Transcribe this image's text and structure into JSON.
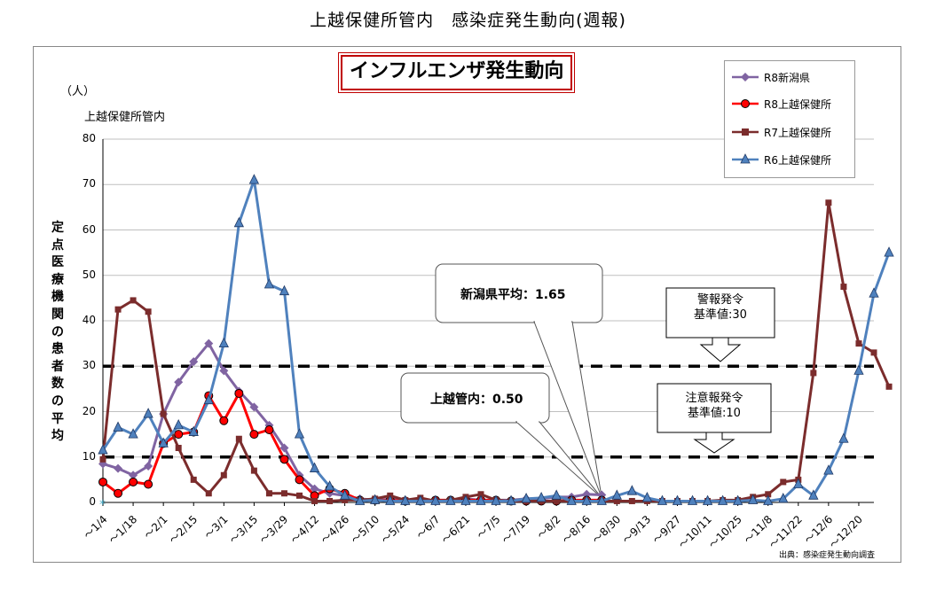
{
  "page_title": "上越保健所管内　感染症発生動向(週報)",
  "chart_data": {
    "type": "line",
    "title": "インフルエンザ発生動向",
    "unit": "（人）",
    "scope_label": "上越保健所管内",
    "ylabel": "定点医療機関の患者数の平均",
    "ylim": [
      0,
      80
    ],
    "yticks": [
      0,
      10,
      20,
      30,
      40,
      50,
      60,
      70,
      80
    ],
    "x_tick_labels": [
      "～1/4",
      "～1/18",
      "～2/1",
      "～2/15",
      "～3/1",
      "～3/15",
      "～3/29",
      "～4/12",
      "～4/26",
      "～5/10",
      "～5/24",
      "～6/7",
      "～6/21",
      "～7/5",
      "～7/19",
      "～8/2",
      "～8/16",
      "～8/30",
      "～9/13",
      "～9/27",
      "～10/11",
      "～10/25",
      "～11/8",
      "～11/22",
      "～12/6",
      "～12/20"
    ],
    "n_weeks": 52,
    "grid": "horizontal",
    "legend_position": "top-right",
    "series": [
      {
        "name": "R8新潟県",
        "color": "#8064a2",
        "marker": "diamond",
        "values": [
          8.5,
          7.5,
          6,
          8,
          19.5,
          26.5,
          31,
          35,
          29,
          24.5,
          21,
          17,
          12,
          6,
          3,
          2,
          1.5,
          0.8,
          0.5,
          0.7,
          0.5,
          0.5,
          0.3,
          0.5,
          0.8,
          0.5,
          0.5,
          0.5,
          0.8,
          0.8,
          1.2,
          1.2,
          1.8,
          1.65
        ]
      },
      {
        "name": "R8上越保健所",
        "color": "#ff0000",
        "marker": "circle",
        "values": [
          4.5,
          2,
          4.5,
          4,
          13,
          15,
          15.5,
          23.5,
          18,
          24,
          15,
          16,
          9.5,
          5,
          1.5,
          3,
          2,
          0.5,
          0.5,
          0.5,
          0.3,
          0.3,
          0.5,
          0.5,
          0.5,
          0.5,
          0.5,
          0.3,
          0.3,
          0.3,
          0.3,
          0.5,
          0.5,
          0.5
        ]
      },
      {
        "name": "R7上越保健所",
        "color": "#7b2c2c",
        "marker": "square",
        "values": [
          9.5,
          42.5,
          44.5,
          42,
          19.5,
          12,
          5,
          2,
          6,
          14,
          7,
          2,
          2,
          1.5,
          0.3,
          0.3,
          0.5,
          0.5,
          0.8,
          1.5,
          0.5,
          1,
          0.3,
          0.5,
          1.2,
          1.8,
          0.5,
          0.3,
          0.3,
          0.3,
          0.3,
          0.3,
          0.3,
          0.3,
          0.3,
          0.3,
          0.3,
          0.3,
          0.3,
          0.3,
          0.3,
          0.5,
          0.5,
          1.2,
          1.8,
          4.5,
          5,
          28.5,
          66,
          47.5,
          35,
          33,
          25.5
        ]
      },
      {
        "name": "R6上越保健所",
        "color": "#4f81bd",
        "marker": "triangle",
        "values": [
          11.5,
          16.5,
          15,
          19.5,
          13,
          17,
          15.5,
          22.5,
          35,
          61.5,
          71,
          48,
          46.5,
          15,
          7.5,
          3.5,
          1.5,
          0.3,
          0.5,
          0.3,
          0.3,
          0.3,
          0.3,
          0.3,
          0.3,
          0.3,
          0.3,
          0.3,
          0.8,
          1,
          1.5,
          0.3,
          0.3,
          0.3,
          1.5,
          2.5,
          1,
          0.3,
          0.3,
          0.3,
          0.3,
          0.3,
          0.3,
          0.5,
          0.3,
          0.8,
          4,
          1.5,
          7,
          14,
          29,
          46,
          55
        ]
      }
    ],
    "reference_lines": [
      {
        "label": "警報発令\n基準値:30",
        "value": 30
      },
      {
        "label": "注意報発令\n基準値:10",
        "value": 10
      }
    ],
    "annotations": [
      {
        "text": "新潟県平均：1.65"
      },
      {
        "text": "上越管内：0.50"
      }
    ],
    "source": "出典：感染症発生動向調査"
  },
  "ref_labels": {
    "alarm": "警報発令\n基準値:30",
    "warning": "注意報発令\n基準値:10"
  },
  "callouts": {
    "niigata": "新潟県平均：1.65",
    "joetsu": "上越管内：0.50"
  }
}
